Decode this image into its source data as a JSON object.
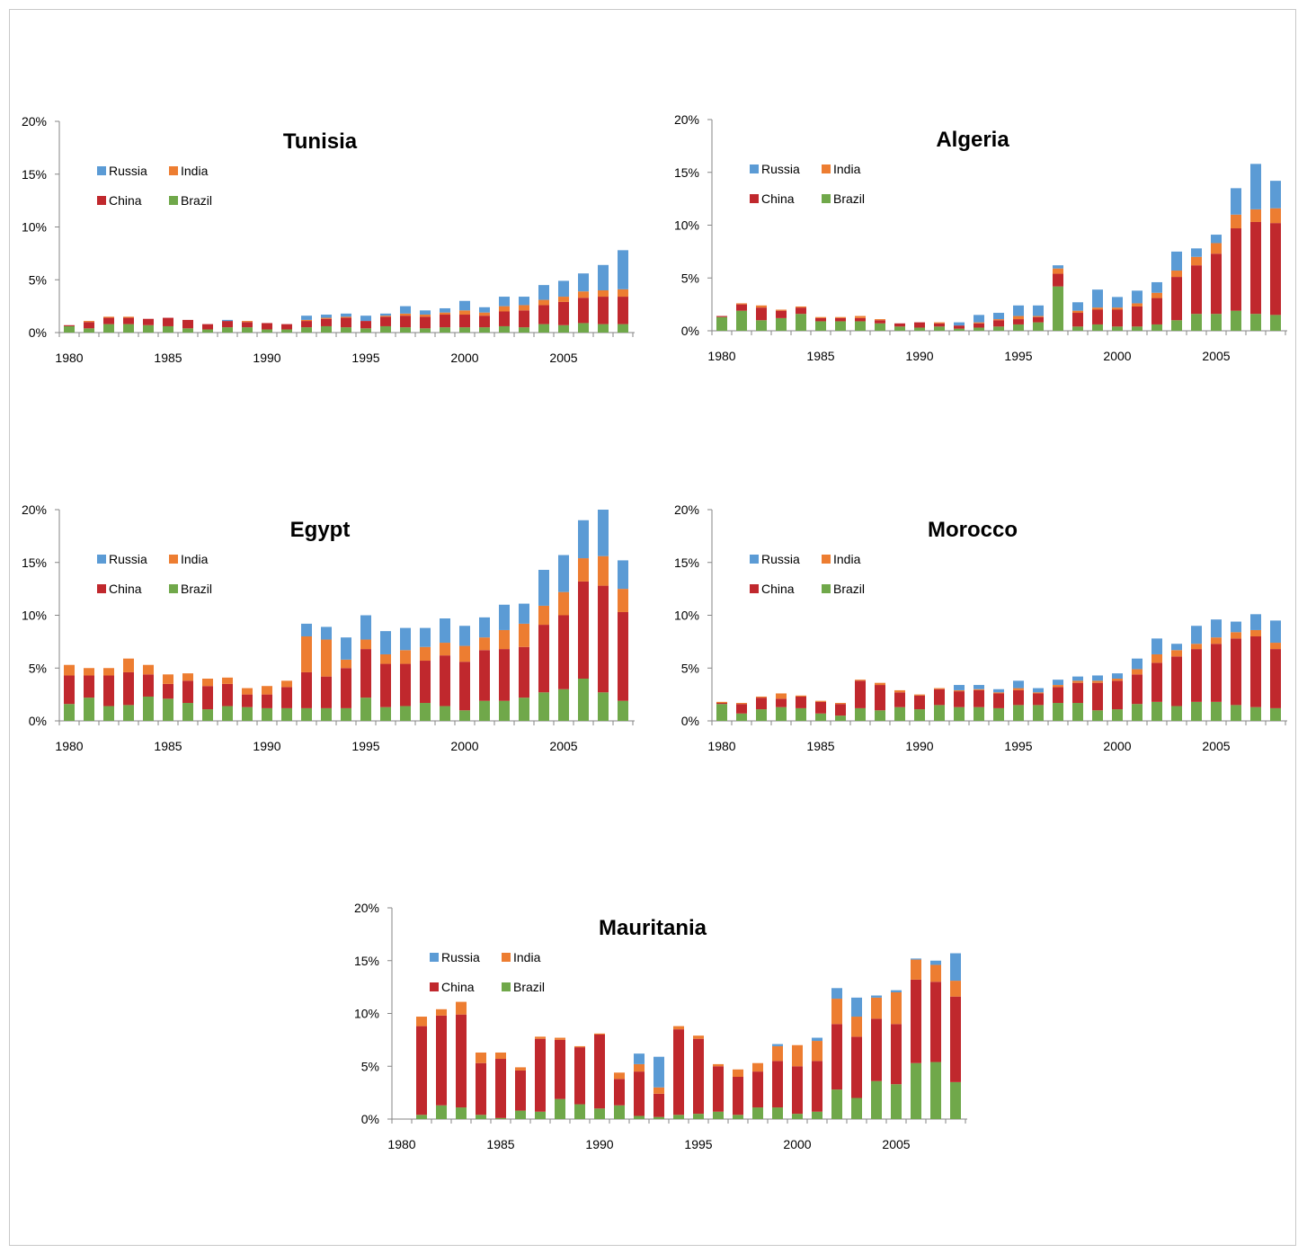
{
  "colors": {
    "russia": "#5b9bd5",
    "india": "#ed7d31",
    "china": "#c0282d",
    "brazil": "#70a84a",
    "axis": "#868686"
  },
  "chart_data": [
    {
      "type": "bar",
      "stacked": true,
      "title": "Tunisia",
      "x": [
        1980,
        1981,
        1982,
        1983,
        1984,
        1985,
        1986,
        1987,
        1988,
        1989,
        1990,
        1991,
        1992,
        1993,
        1994,
        1995,
        1996,
        1997,
        1998,
        1999,
        2000,
        2001,
        2002,
        2003,
        2004,
        2005,
        2006,
        2007,
        2008
      ],
      "x_ticks": [
        "1980",
        "1985",
        "1990",
        "1995",
        "2000",
        "2005"
      ],
      "y_ticks": [
        "0%",
        "5%",
        "10%",
        "15%",
        "20%"
      ],
      "ylim": [
        0,
        20
      ],
      "legend_position": "top-left",
      "series": [
        {
          "name": "Brazil",
          "values": [
            0.6,
            0.4,
            0.8,
            0.8,
            0.7,
            0.6,
            0.4,
            0.3,
            0.5,
            0.5,
            0.3,
            0.3,
            0.5,
            0.6,
            0.5,
            0.4,
            0.6,
            0.5,
            0.4,
            0.5,
            0.5,
            0.5,
            0.6,
            0.5,
            0.8,
            0.7,
            0.9,
            0.8,
            0.8
          ]
        },
        {
          "name": "China",
          "values": [
            0.1,
            0.6,
            0.6,
            0.6,
            0.6,
            0.8,
            0.8,
            0.5,
            0.6,
            0.5,
            0.6,
            0.5,
            0.6,
            0.7,
            0.9,
            0.7,
            0.9,
            1.1,
            1.1,
            1.2,
            1.2,
            1.1,
            1.4,
            1.6,
            1.8,
            2.2,
            2.4,
            2.6,
            2.6
          ]
        },
        {
          "name": "India",
          "values": [
            0,
            0.1,
            0.1,
            0.1,
            0,
            0,
            0,
            0,
            0,
            0.1,
            0,
            0,
            0.1,
            0.1,
            0.1,
            0,
            0.1,
            0.2,
            0.2,
            0.2,
            0.4,
            0.3,
            0.5,
            0.5,
            0.5,
            0.5,
            0.6,
            0.6,
            0.7
          ]
        },
        {
          "name": "Russia",
          "values": [
            0,
            0,
            0,
            0,
            0,
            0,
            0,
            0,
            0.1,
            0,
            0,
            0,
            0.4,
            0.3,
            0.3,
            0.5,
            0.2,
            0.7,
            0.4,
            0.4,
            0.9,
            0.5,
            0.9,
            0.8,
            1.4,
            1.5,
            1.7,
            2.4,
            3.7
          ]
        }
      ]
    },
    {
      "type": "bar",
      "stacked": true,
      "title": "Algeria",
      "x": [
        1980,
        1981,
        1982,
        1983,
        1984,
        1985,
        1986,
        1987,
        1988,
        1989,
        1990,
        1991,
        1992,
        1993,
        1994,
        1995,
        1996,
        1997,
        1998,
        1999,
        2000,
        2001,
        2002,
        2003,
        2004,
        2005,
        2006,
        2007,
        2008
      ],
      "x_ticks": [
        "1980",
        "1985",
        "1990",
        "1995",
        "2000",
        "2005"
      ],
      "y_ticks": [
        "0%",
        "5%",
        "10%",
        "15%",
        "20%"
      ],
      "ylim": [
        0,
        20
      ],
      "legend_position": "top-left",
      "series": [
        {
          "name": "Brazil",
          "values": [
            1.3,
            1.9,
            1.0,
            1.2,
            1.6,
            0.9,
            0.9,
            0.9,
            0.7,
            0.4,
            0.3,
            0.4,
            0.2,
            0.3,
            0.4,
            0.6,
            0.8,
            4.2,
            0.4,
            0.6,
            0.4,
            0.4,
            0.6,
            1.0,
            1.6,
            1.6,
            1.9,
            1.6,
            1.5
          ]
        },
        {
          "name": "China",
          "values": [
            0.1,
            0.6,
            1.2,
            0.7,
            0.6,
            0.3,
            0.3,
            0.3,
            0.3,
            0.3,
            0.5,
            0.3,
            0.3,
            0.4,
            0.6,
            0.5,
            0.5,
            1.2,
            1.3,
            1.4,
            1.6,
            1.9,
            2.5,
            4.1,
            4.6,
            5.7,
            7.8,
            8.7,
            8.7
          ]
        },
        {
          "name": "India",
          "values": [
            0,
            0.1,
            0.2,
            0.1,
            0.1,
            0.1,
            0.1,
            0.2,
            0.1,
            0,
            0,
            0.1,
            0,
            0.1,
            0.1,
            0.3,
            0.1,
            0.5,
            0.2,
            0.2,
            0.2,
            0.3,
            0.5,
            0.6,
            0.8,
            1.0,
            1.3,
            1.2,
            1.4
          ]
        },
        {
          "name": "Russia",
          "values": [
            0,
            0,
            0,
            0,
            0,
            0,
            0,
            0,
            0,
            0,
            0,
            0,
            0.3,
            0.7,
            0.6,
            1.0,
            1.0,
            0.3,
            0.8,
            1.7,
            1.0,
            1.2,
            1.0,
            1.8,
            0.8,
            0.8,
            2.5,
            4.3,
            2.6
          ]
        }
      ]
    },
    {
      "type": "bar",
      "stacked": true,
      "title": "Egypt",
      "x": [
        1980,
        1981,
        1982,
        1983,
        1984,
        1985,
        1986,
        1987,
        1988,
        1989,
        1990,
        1991,
        1992,
        1993,
        1994,
        1995,
        1996,
        1997,
        1998,
        1999,
        2000,
        2001,
        2002,
        2003,
        2004,
        2005,
        2006,
        2007,
        2008
      ],
      "x_ticks": [
        "1980",
        "1985",
        "1990",
        "1995",
        "2000",
        "2005"
      ],
      "y_ticks": [
        "0%",
        "5%",
        "10%",
        "15%",
        "20%"
      ],
      "ylim": [
        0,
        20
      ],
      "legend_position": "top-left",
      "series": [
        {
          "name": "Brazil",
          "values": [
            1.6,
            2.2,
            1.4,
            1.5,
            2.3,
            2.1,
            1.7,
            1.1,
            1.4,
            1.3,
            1.2,
            1.2,
            1.2,
            1.2,
            1.2,
            2.2,
            1.3,
            1.4,
            1.7,
            1.4,
            1.0,
            1.9,
            1.9,
            2.2,
            2.7,
            3.0,
            4.0,
            2.7,
            1.9
          ]
        },
        {
          "name": "China",
          "values": [
            2.7,
            2.1,
            2.9,
            3.1,
            2.1,
            1.4,
            2.1,
            2.2,
            2.1,
            1.2,
            1.3,
            2.0,
            3.4,
            3.0,
            3.8,
            4.6,
            4.1,
            4.0,
            4.0,
            4.8,
            4.6,
            4.8,
            4.9,
            4.8,
            6.4,
            7.0,
            9.2,
            10.1,
            8.4
          ]
        },
        {
          "name": "India",
          "values": [
            1.0,
            0.7,
            0.7,
            1.3,
            0.9,
            0.9,
            0.7,
            0.7,
            0.6,
            0.6,
            0.8,
            0.6,
            3.4,
            3.5,
            0.8,
            0.9,
            0.9,
            1.3,
            1.3,
            1.2,
            1.5,
            1.2,
            1.8,
            2.2,
            1.8,
            2.2,
            2.2,
            2.8,
            2.2
          ]
        },
        {
          "name": "Russia",
          "values": [
            0,
            0,
            0,
            0,
            0,
            0,
            0,
            0,
            0,
            0,
            0,
            0,
            1.2,
            1.2,
            2.1,
            2.3,
            2.2,
            2.1,
            1.8,
            2.3,
            1.9,
            1.9,
            2.4,
            1.9,
            3.4,
            3.5,
            3.6,
            4.4,
            2.7
          ]
        }
      ]
    },
    {
      "type": "bar",
      "stacked": true,
      "title": "Morocco",
      "x": [
        1980,
        1981,
        1982,
        1983,
        1984,
        1985,
        1986,
        1987,
        1988,
        1989,
        1990,
        1991,
        1992,
        1993,
        1994,
        1995,
        1996,
        1997,
        1998,
        1999,
        2000,
        2001,
        2002,
        2003,
        2004,
        2005,
        2006,
        2007,
        2008
      ],
      "x_ticks": [
        "1980",
        "1985",
        "1990",
        "1995",
        "2000",
        "2005"
      ],
      "y_ticks": [
        "0%",
        "5%",
        "10%",
        "15%",
        "20%"
      ],
      "ylim": [
        0,
        20
      ],
      "legend_position": "top-left",
      "series": [
        {
          "name": "Brazil",
          "values": [
            1.6,
            0.7,
            1.1,
            1.3,
            1.2,
            0.7,
            0.5,
            1.2,
            1.0,
            1.3,
            1.1,
            1.5,
            1.3,
            1.3,
            1.2,
            1.5,
            1.5,
            1.7,
            1.7,
            1.0,
            1.1,
            1.6,
            1.8,
            1.4,
            1.8,
            1.8,
            1.5,
            1.3,
            1.2
          ]
        },
        {
          "name": "China",
          "values": [
            0.1,
            0.9,
            1.1,
            0.8,
            1.1,
            1.1,
            1.1,
            2.6,
            2.4,
            1.4,
            1.3,
            1.5,
            1.5,
            1.6,
            1.4,
            1.4,
            1.1,
            1.5,
            1.9,
            2.6,
            2.7,
            2.8,
            3.7,
            4.7,
            5.0,
            5.5,
            6.3,
            6.7,
            5.6
          ]
        },
        {
          "name": "India",
          "values": [
            0.1,
            0.1,
            0.1,
            0.5,
            0.1,
            0.1,
            0.1,
            0.1,
            0.2,
            0.2,
            0.1,
            0.1,
            0.1,
            0.1,
            0.1,
            0.2,
            0.1,
            0.2,
            0.2,
            0.2,
            0.2,
            0.5,
            0.8,
            0.6,
            0.5,
            0.6,
            0.6,
            0.6,
            0.6
          ]
        },
        {
          "name": "Russia",
          "values": [
            0,
            0,
            0,
            0,
            0,
            0,
            0,
            0,
            0,
            0,
            0,
            0,
            0.5,
            0.4,
            0.3,
            0.7,
            0.4,
            0.5,
            0.4,
            0.5,
            0.5,
            1.0,
            1.5,
            0.6,
            1.7,
            1.7,
            1.0,
            1.5,
            2.1
          ]
        }
      ]
    },
    {
      "type": "bar",
      "stacked": true,
      "title": "Mauritania",
      "x": [
        1980,
        1981,
        1982,
        1983,
        1984,
        1985,
        1986,
        1987,
        1988,
        1989,
        1990,
        1991,
        1992,
        1993,
        1994,
        1995,
        1996,
        1997,
        1998,
        1999,
        2000,
        2001,
        2002,
        2003,
        2004,
        2005,
        2006,
        2007,
        2008
      ],
      "x_ticks": [
        "1980",
        "1985",
        "1990",
        "1995",
        "2000",
        "2005"
      ],
      "y_ticks": [
        "0%",
        "5%",
        "10%",
        "15%",
        "20%"
      ],
      "ylim": [
        0,
        20
      ],
      "legend_position": "top-left",
      "series": [
        {
          "name": "Brazil",
          "values": [
            null,
            0.4,
            1.3,
            1.1,
            0.4,
            0.1,
            0.8,
            0.7,
            1.9,
            1.4,
            1.0,
            1.3,
            0.3,
            0.2,
            0.4,
            0.5,
            0.7,
            0.4,
            1.1,
            1.1,
            0.5,
            0.7,
            2.8,
            2.0,
            3.6,
            3.3,
            5.3,
            5.4,
            3.5
          ]
        },
        {
          "name": "China",
          "values": [
            null,
            8.4,
            8.5,
            8.8,
            4.9,
            5.6,
            3.8,
            6.9,
            5.6,
            5.4,
            7.0,
            2.5,
            4.2,
            2.2,
            8.1,
            7.1,
            4.3,
            3.6,
            3.4,
            4.4,
            4.5,
            4.8,
            6.2,
            5.8,
            5.9,
            5.7,
            7.9,
            7.6,
            8.1
          ]
        },
        {
          "name": "India",
          "values": [
            null,
            0.9,
            0.6,
            1.2,
            1.0,
            0.6,
            0.3,
            0.2,
            0.2,
            0.1,
            0.1,
            0.6,
            0.7,
            0.6,
            0.3,
            0.3,
            0.2,
            0.7,
            0.8,
            1.4,
            2.0,
            1.9,
            2.4,
            1.9,
            2.0,
            3.0,
            1.9,
            1.6,
            1.5
          ]
        },
        {
          "name": "Russia",
          "values": [
            null,
            0,
            0,
            0,
            0,
            0,
            0,
            0,
            0,
            0,
            0,
            0,
            1.0,
            2.9,
            0,
            0,
            0,
            0,
            0,
            0.2,
            0,
            0.3,
            1.0,
            1.8,
            0.2,
            0.2,
            0.1,
            0.4,
            2.6
          ]
        }
      ]
    }
  ]
}
